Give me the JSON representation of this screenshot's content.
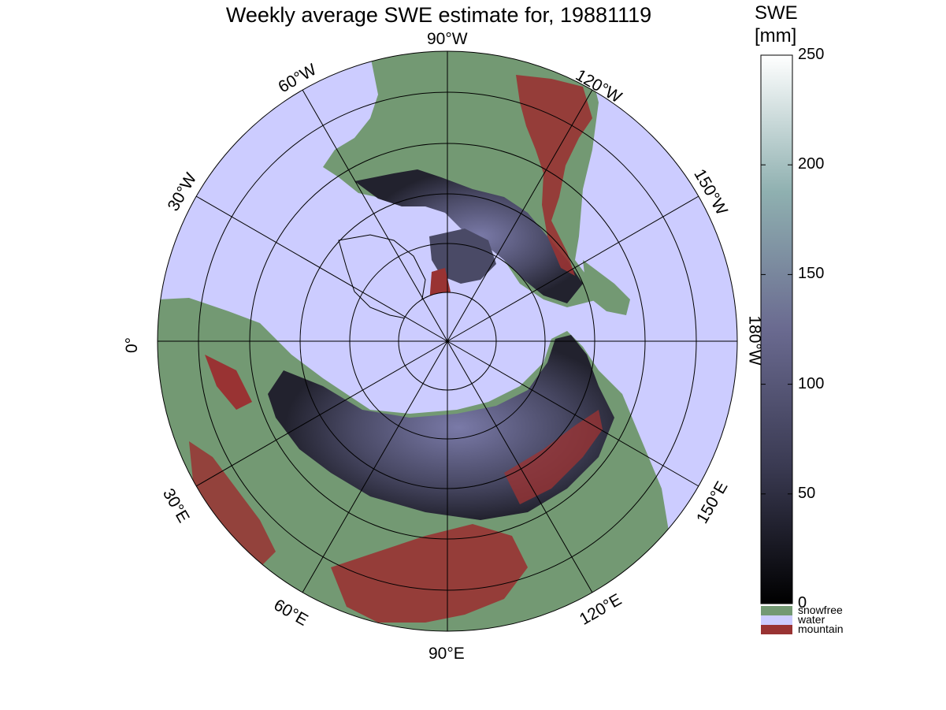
{
  "title": "Weekly average SWE estimate for, 19881119",
  "map": {
    "projection": "north polar stereographic",
    "graticule_labels": {
      "w90": "90°W",
      "w60": "60°W",
      "w120": "120°W",
      "w30": "30°W",
      "w150": "150°W",
      "zero": "0°",
      "w180": "180°W",
      "e30": "30°E",
      "e150": "150°E",
      "e60": "60°E",
      "e120": "120°E",
      "e90": "90°E"
    },
    "colors": {
      "water": "#ccccff",
      "snowfree": "#739973",
      "mountain": "#993333",
      "snow_shallow": "#2a2a3a",
      "snow_deep": "#6f6f9a"
    }
  },
  "colorbar": {
    "title_line1": "SWE",
    "title_line2": "[mm]",
    "ticks": [
      "0",
      "50",
      "100",
      "150",
      "200",
      "250"
    ],
    "range": [
      0,
      250
    ],
    "categories": [
      {
        "label": "snowfree",
        "color": "#739973"
      },
      {
        "label": "water",
        "color": "#ccccff"
      },
      {
        "label": "mountain",
        "color": "#993333"
      }
    ]
  }
}
